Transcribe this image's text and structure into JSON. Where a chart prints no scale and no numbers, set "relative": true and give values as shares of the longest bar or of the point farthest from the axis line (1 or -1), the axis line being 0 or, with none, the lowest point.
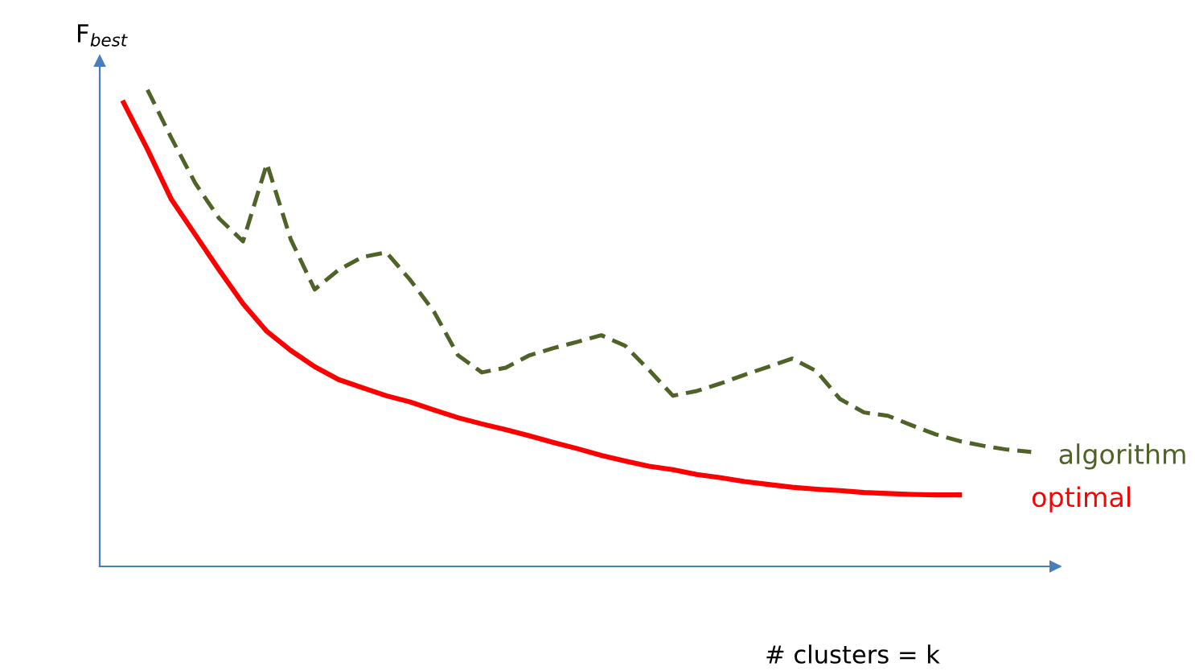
{
  "chart_data": {
    "type": "line",
    "relative": true,
    "ylabel": "F$_{best}$",
    "xlabel": "# clusters = k",
    "marker": "none",
    "categories": [
      null,
      null,
      null,
      null,
      null,
      null,
      null,
      null,
      null,
      null,
      null,
      null,
      null,
      null,
      null,
      null,
      null,
      null,
      null,
      null,
      null,
      null,
      null,
      null,
      null,
      null,
      null,
      null,
      null,
      null,
      null,
      null,
      null,
      null,
      null,
      null,
      null,
      null,
      null,
      null,
      null
    ],
    "series": [
      {
        "name": "algorithm",
        "color": "#4f6228",
        "line_style": "dashed",
        "values": [
          null,
          null,
          1.0,
          0.899,
          0.804,
          0.73,
          0.682,
          0.845,
          0.686,
          0.581,
          0.622,
          0.649,
          0.659,
          0.601,
          0.534,
          0.443,
          0.407,
          0.417,
          0.443,
          0.458,
          0.471,
          0.485,
          0.463,
          0.412,
          0.358,
          0.368,
          0.384,
          0.402,
          0.419,
          0.436,
          0.41,
          0.351,
          0.323,
          0.316,
          0.296,
          0.277,
          0.263,
          0.253,
          0.245,
          0.24,
          null
        ]
      },
      {
        "name": "optimal",
        "color": "#ff0000",
        "line_style": "solid",
        "values": [
          null,
          0.973,
          0.875,
          0.77,
          0.696,
          0.622,
          0.551,
          0.493,
          0.453,
          0.419,
          0.392,
          0.375,
          0.358,
          0.345,
          0.328,
          0.312,
          0.299,
          0.287,
          0.274,
          0.26,
          0.247,
          0.233,
          0.221,
          0.21,
          0.203,
          0.193,
          0.186,
          0.178,
          0.172,
          0.166,
          0.162,
          0.159,
          0.155,
          0.153,
          0.151,
          0.15,
          0.15,
          null,
          null,
          null,
          null
        ]
      }
    ]
  }
}
